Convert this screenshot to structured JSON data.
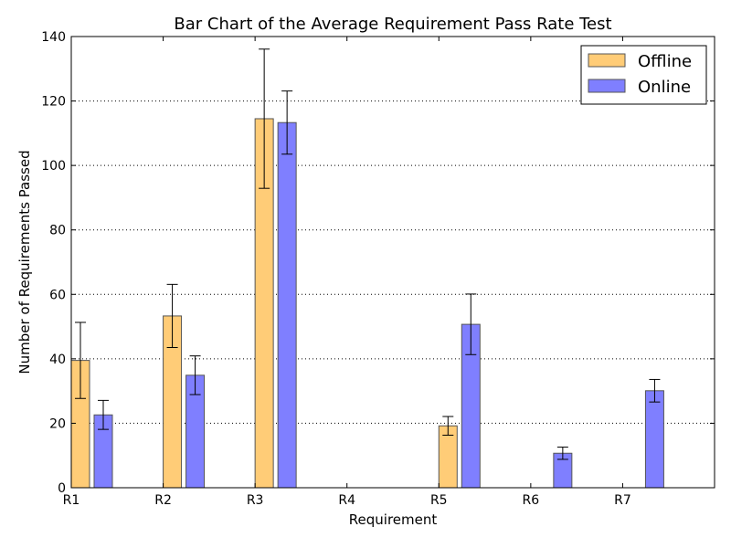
{
  "chart_data": {
    "type": "bar",
    "title": "Bar Chart of the Average Requirement Pass Rate Test",
    "xlabel": "Requirement",
    "ylabel": "Number of Requirements Passed",
    "categories": [
      "R1",
      "R2",
      "R3",
      "R4",
      "R5",
      "R6",
      "R7"
    ],
    "ylim": [
      0,
      140
    ],
    "yticks": [
      0,
      20,
      40,
      60,
      80,
      100,
      120,
      140
    ],
    "grid": "horizontal dotted",
    "legend_position": "top-right",
    "series": [
      {
        "name": "Offline",
        "color": "#ffcc77",
        "values": [
          39.5,
          53.3,
          114.5,
          0,
          19.2,
          0,
          0
        ],
        "errors": [
          11.8,
          9.8,
          21.6,
          0,
          2.9,
          0,
          0
        ]
      },
      {
        "name": "Online",
        "color": "#7f7fff",
        "values": [
          22.6,
          34.9,
          113.3,
          0,
          50.7,
          10.7,
          30.1
        ],
        "errors": [
          4.5,
          6.0,
          9.8,
          0,
          9.4,
          1.9,
          3.5
        ]
      }
    ]
  }
}
